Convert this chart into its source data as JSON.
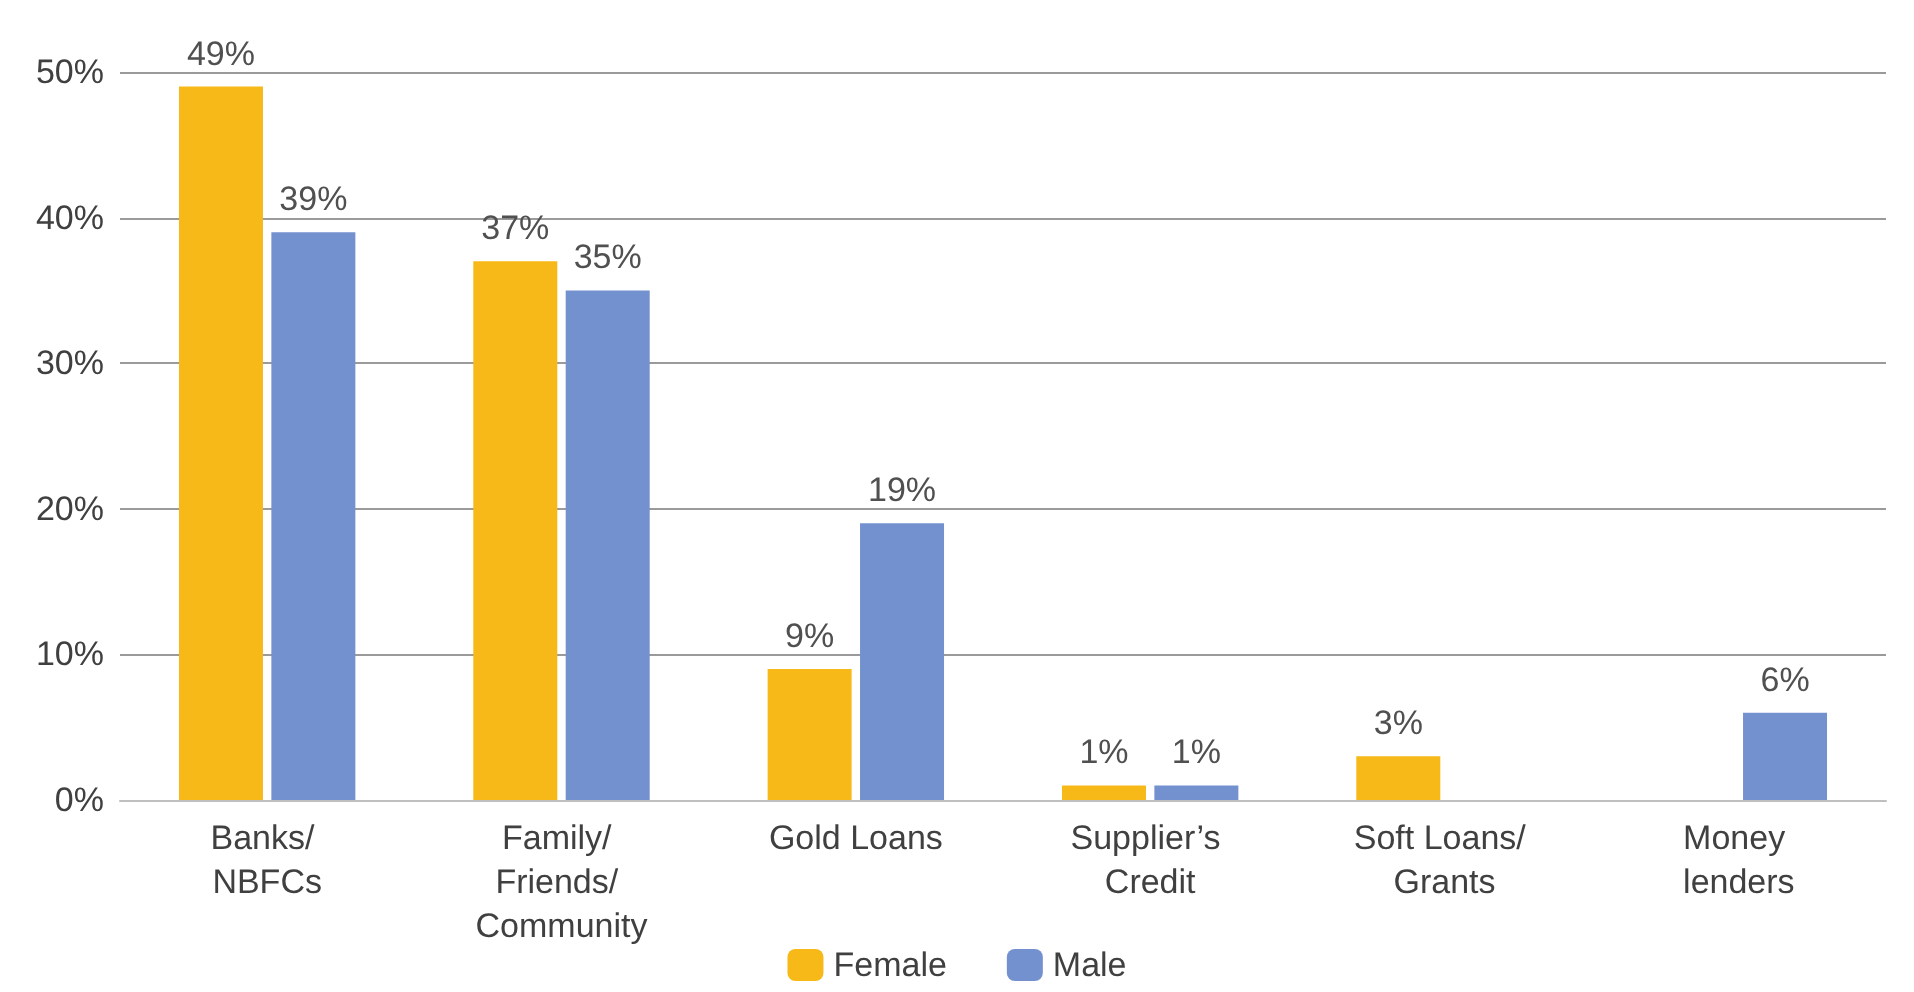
{
  "chart_data": {
    "type": "bar",
    "categories": [
      "Banks/ NBFCs",
      "Family/ Friends/ Community",
      "Gold Loans",
      "Supplier’s Credit",
      "Soft Loans/ Grants",
      "Money lenders"
    ],
    "series": [
      {
        "name": "Female",
        "color": "#f6b918",
        "values": [
          49,
          37,
          9,
          1,
          3,
          null
        ],
        "value_labels": [
          "49%",
          "37%",
          "9%",
          "1%",
          "3%",
          null
        ]
      },
      {
        "name": "Male",
        "color": "#7390cf",
        "values": [
          39,
          35,
          19,
          1,
          null,
          6
        ],
        "value_labels": [
          "39%",
          "35%",
          "19%",
          "1%",
          null,
          "6%"
        ]
      }
    ],
    "ylim": [
      0,
      50
    ],
    "yticks": [
      {
        "value": 0,
        "label": "0%"
      },
      {
        "value": 10,
        "label": "10%"
      },
      {
        "value": 20,
        "label": "20%"
      },
      {
        "value": 30,
        "label": "30%"
      },
      {
        "value": 40,
        "label": "40%"
      },
      {
        "value": 50,
        "label": "50%"
      }
    ],
    "grid": "y",
    "legend": "bottom"
  }
}
